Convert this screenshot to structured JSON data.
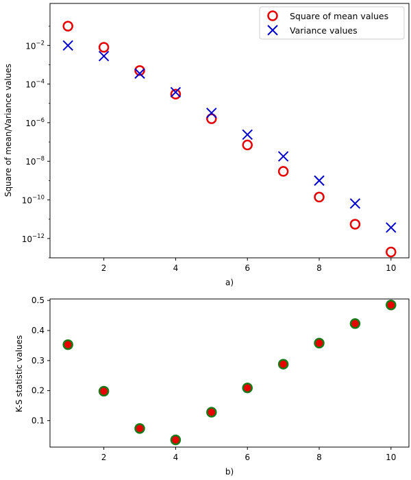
{
  "chart_data": [
    {
      "type": "scatter",
      "yscale": "log",
      "xlabel": "a)",
      "ylabel": "Square of mean/Variance values",
      "xlim": [
        0.5,
        10.5
      ],
      "ylim": [
        1e-13,
        1.5
      ],
      "x_ticks": [
        2,
        4,
        6,
        8,
        10
      ],
      "y_ticks": [
        {
          "exp": -12,
          "label": "10",
          "sup": "−12"
        },
        {
          "exp": -10,
          "label": "10",
          "sup": "−10"
        },
        {
          "exp": -8,
          "label": "10",
          "sup": "−8"
        },
        {
          "exp": -6,
          "label": "10",
          "sup": "−6"
        },
        {
          "exp": -4,
          "label": "10",
          "sup": "−4"
        },
        {
          "exp": -2,
          "label": "10",
          "sup": "−2"
        }
      ],
      "legend_position": "top-right",
      "series": [
        {
          "name": "Square of mean values",
          "marker": "circle",
          "color": "#e60000",
          "x": [
            1,
            2,
            3,
            4,
            5,
            6,
            7,
            8,
            9,
            10
          ],
          "y": [
            0.1,
            0.008,
            0.0005,
            3e-05,
            1.6e-06,
            7e-08,
            3e-09,
            1.4e-10,
            5.5e-12,
            2e-13
          ]
        },
        {
          "name": "Variance values",
          "marker": "x",
          "color": "#0000cc",
          "x": [
            1,
            2,
            3,
            4,
            5,
            6,
            7,
            8,
            9,
            10
          ],
          "y": [
            0.01,
            0.0028,
            0.00035,
            3.8e-05,
            3.2e-06,
            2.4e-07,
            1.8e-08,
            1e-09,
            6.5e-11,
            3.7e-12
          ]
        }
      ]
    },
    {
      "type": "scatter",
      "xlabel": "b)",
      "ylabel": "K-S statistic values",
      "xlim": [
        0.5,
        10.5
      ],
      "ylim": [
        0.012,
        0.505
      ],
      "x_ticks": [
        2,
        4,
        6,
        8,
        10
      ],
      "y_ticks": [
        0.1,
        0.2,
        0.3,
        0.4,
        0.5
      ],
      "series": [
        {
          "name": "K-S statistic",
          "marker": "circle",
          "face_color": "#e60000",
          "edge_color": "#1a7a1a",
          "x": [
            1,
            2,
            3,
            4,
            5,
            6,
            7,
            8,
            9,
            10
          ],
          "y": [
            0.353,
            0.198,
            0.074,
            0.036,
            0.128,
            0.209,
            0.288,
            0.358,
            0.423,
            0.485
          ]
        }
      ]
    }
  ]
}
